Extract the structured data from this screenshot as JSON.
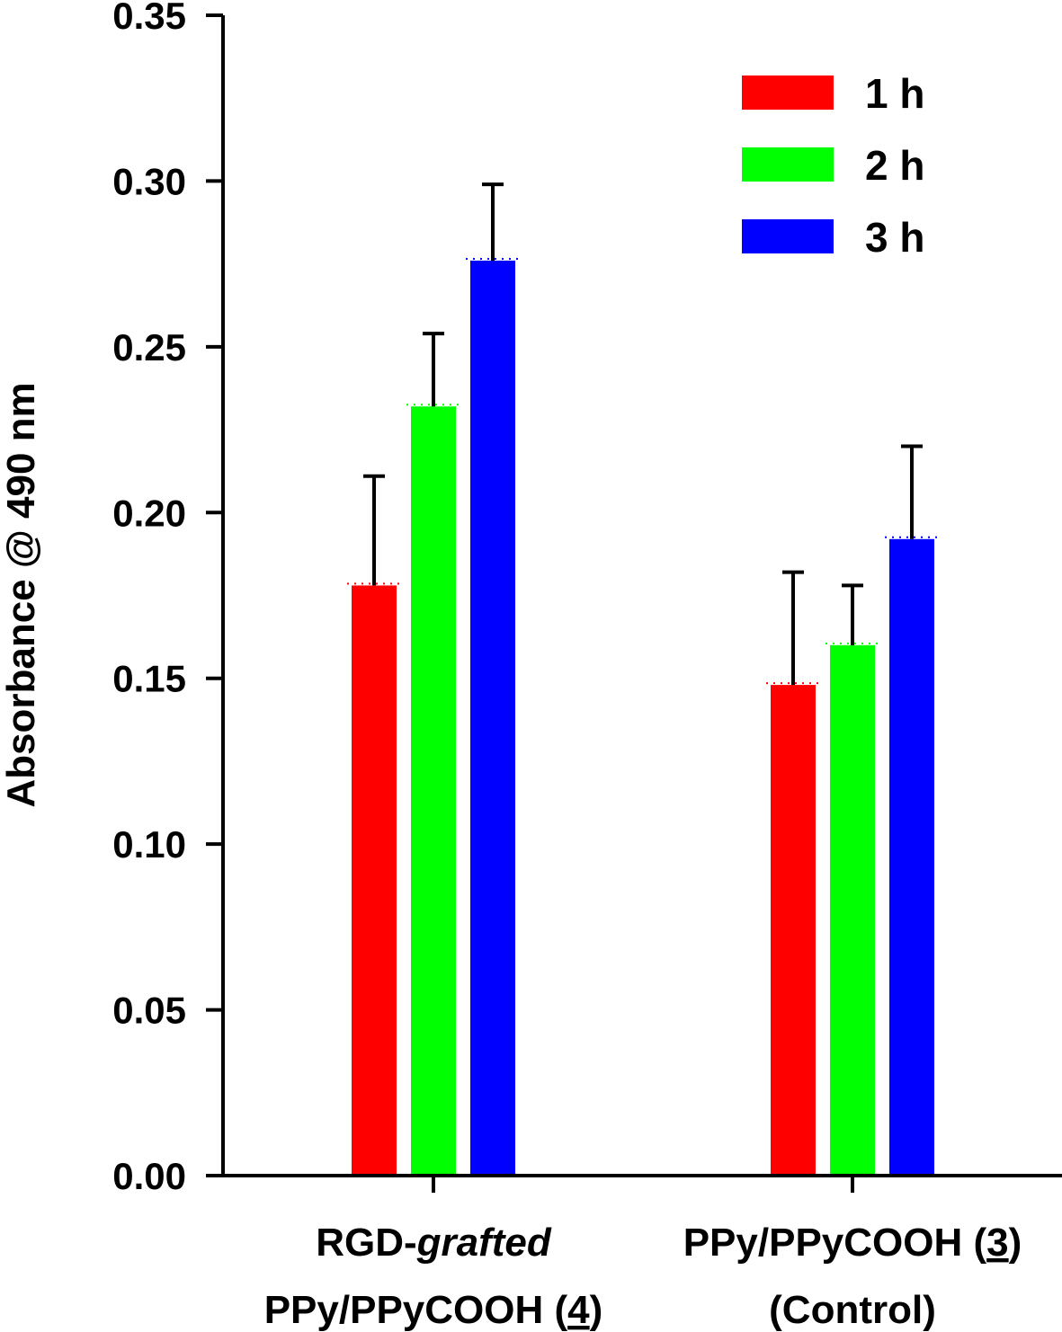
{
  "chart_data": {
    "type": "bar",
    "ylabel": "Absorbance @ 490 nm",
    "xlabel": "",
    "ylim": [
      0,
      0.35
    ],
    "yticks": [
      "0.00",
      "0.05",
      "0.10",
      "0.15",
      "0.20",
      "0.25",
      "0.30",
      "0.35"
    ],
    "categories": [
      {
        "lines": [
          [
            {
              "text": "RGD-"
            },
            {
              "text": "grafted",
              "italic": true
            }
          ],
          [
            {
              "text": "PPy/PPyCOOH ("
            },
            {
              "text": "4",
              "underline": true
            },
            {
              "text": ")"
            }
          ]
        ]
      },
      {
        "lines": [
          [
            {
              "text": "PPy/PPyCOOH ("
            },
            {
              "text": "3",
              "underline": true
            },
            {
              "text": ")"
            }
          ],
          [
            {
              "text": "(Control)"
            }
          ]
        ]
      }
    ],
    "series": [
      {
        "name": "1 h",
        "color": "#ff0000",
        "values": [
          0.178,
          0.148
        ],
        "errors": [
          0.033,
          0.034
        ]
      },
      {
        "name": "2 h",
        "color": "#00ff00",
        "values": [
          0.232,
          0.16
        ],
        "errors": [
          0.022,
          0.018
        ]
      },
      {
        "name": "3 h",
        "color": "#0000ff",
        "values": [
          0.276,
          0.192
        ],
        "errors": [
          0.023,
          0.028
        ]
      }
    ],
    "legend_position": "top-right",
    "grid": false
  }
}
